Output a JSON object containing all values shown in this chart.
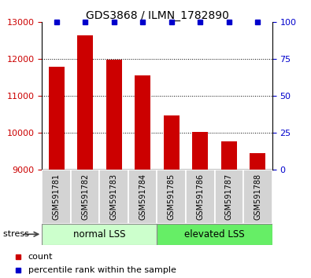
{
  "title": "GDS3868 / ILMN_1782890",
  "categories": [
    "GSM591781",
    "GSM591782",
    "GSM591783",
    "GSM591784",
    "GSM591785",
    "GSM591786",
    "GSM591787",
    "GSM591788"
  ],
  "bar_values": [
    11800,
    12650,
    11980,
    11560,
    10480,
    10020,
    9760,
    9440
  ],
  "percentile_ranks": [
    100,
    100,
    100,
    100,
    100,
    100,
    100,
    100
  ],
  "bar_color": "#cc0000",
  "percentile_color": "#0000cc",
  "ylim_left": [
    9000,
    13000
  ],
  "ylim_right": [
    0,
    100
  ],
  "yticks_left": [
    9000,
    10000,
    11000,
    12000,
    13000
  ],
  "yticks_right": [
    0,
    25,
    50,
    75,
    100
  ],
  "group1_label": "normal LSS",
  "group2_label": "elevated LSS",
  "group1_color": "#ccffcc",
  "group2_color": "#66ee66",
  "xlabel_area_color": "#d3d3d3",
  "legend_count_color": "#cc0000",
  "legend_percentile_color": "#0000cc",
  "legend_count_label": "count",
  "legend_percentile_label": "percentile rank within the sample",
  "title_fontsize": 10,
  "tick_fontsize": 8,
  "group_label_fontsize": 8.5,
  "legend_fontsize": 8,
  "stress_text": "stress ",
  "arrow_color": "#444444"
}
